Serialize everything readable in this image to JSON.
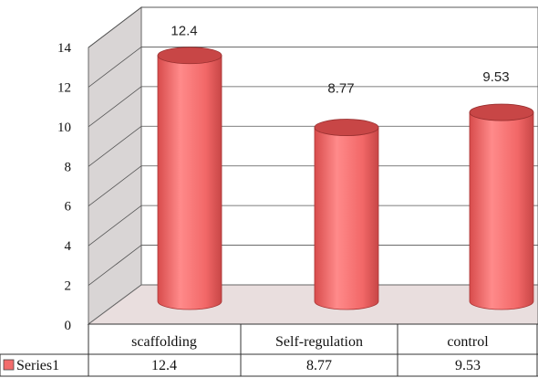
{
  "chart_data": {
    "type": "bar",
    "categories": [
      "scaffolding",
      "Self-regulation",
      "control"
    ],
    "series": [
      {
        "name": "Series1",
        "values": [
          12.4,
          8.77,
          9.53
        ],
        "color": "#f26c6c"
      }
    ],
    "data_labels": [
      "12.4",
      "8.77",
      "9.53"
    ],
    "ylim": [
      0,
      14
    ],
    "yticks": [
      "0",
      "2",
      "4",
      "6",
      "8",
      "10",
      "12",
      "14"
    ],
    "grid": true,
    "style": "3d-cylinder",
    "data_table": {
      "rows": [
        {
          "label": "Series1",
          "values": [
            "12.4",
            "8.77",
            "9.53"
          ]
        }
      ]
    },
    "colors": {
      "bar": "#f26c6c",
      "bar_dark": "#b83838",
      "bar_top": "#c84646",
      "wall": "#d9d5d5",
      "floor": "#e9dede"
    }
  }
}
